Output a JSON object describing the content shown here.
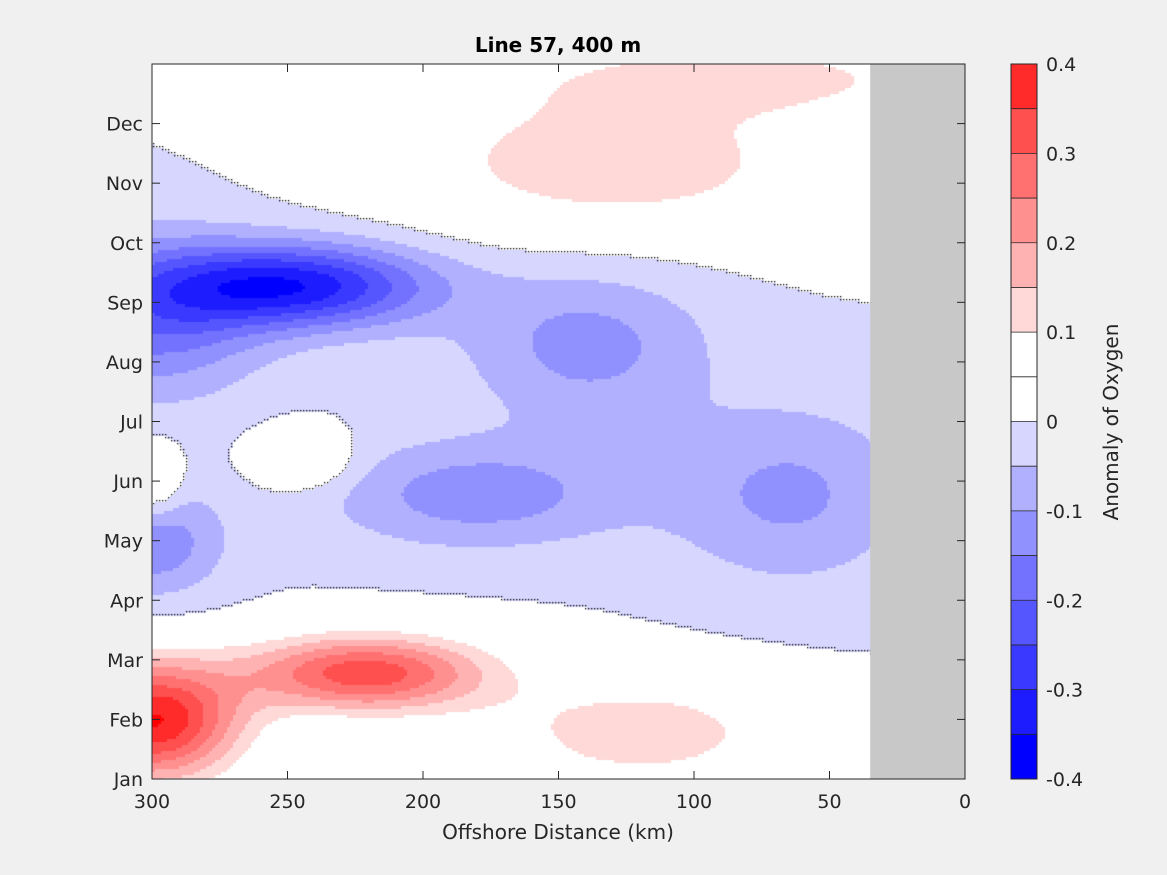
{
  "chart_data": {
    "type": "heatmap",
    "subtype": "filled-contour",
    "title": "Line 57, 400 m",
    "xlabel": "Offshore Distance (km)",
    "ylabel": "",
    "xlim": [
      300,
      0
    ],
    "x_direction": "reversed",
    "xticks": [
      300,
      250,
      200,
      150,
      100,
      50,
      0
    ],
    "xtick_labels": [
      "300",
      "250",
      "200",
      "150",
      "100",
      "50",
      "0"
    ],
    "ylim": [
      1,
      13
    ],
    "yticks": [
      1,
      2,
      3,
      4,
      5,
      6,
      7,
      8,
      9,
      10,
      11,
      12
    ],
    "ytick_labels": [
      "Jan",
      "Feb",
      "Mar",
      "Apr",
      "May",
      "Jun",
      "Jul",
      "Aug",
      "Sep",
      "Oct",
      "Nov",
      "Dec"
    ],
    "no_data_region_x": [
      35,
      0
    ],
    "no_data_color": "#c8c8c8",
    "zero_contour_color": "#000000",
    "colorbar": {
      "label": "Anomaly of Oxygen",
      "clim": [
        -0.4,
        0.4
      ],
      "tick_values": [
        0.4,
        0.3,
        0.2,
        0.1,
        0,
        -0.1,
        -0.2,
        -0.3,
        -0.4
      ],
      "tick_labels": [
        "0.4",
        "0.3",
        "0.2",
        "0.1",
        "0",
        "-0.1",
        "-0.2",
        "-0.3",
        "-0.4"
      ],
      "levels": [
        {
          "range": [
            -0.4,
            -0.35
          ],
          "color": "#0000ff"
        },
        {
          "range": [
            -0.35,
            -0.3
          ],
          "color": "#1c1cff"
        },
        {
          "range": [
            -0.3,
            -0.25
          ],
          "color": "#3939ff"
        },
        {
          "range": [
            -0.25,
            -0.2
          ],
          "color": "#5656ff"
        },
        {
          "range": [
            -0.2,
            -0.15
          ],
          "color": "#7272ff"
        },
        {
          "range": [
            -0.15,
            -0.1
          ],
          "color": "#9090ff"
        },
        {
          "range": [
            -0.1,
            -0.05
          ],
          "color": "#b0b0ff"
        },
        {
          "range": [
            -0.05,
            0
          ],
          "color": "#d6d6ff"
        },
        {
          "range": [
            0,
            0.05
          ],
          "color": "#ffffff"
        },
        {
          "range": [
            0.05,
            0.1
          ],
          "color": "#ffffff"
        },
        {
          "range": [
            0.1,
            0.15
          ],
          "color": "#ffd8d8"
        },
        {
          "range": [
            0.15,
            0.2
          ],
          "color": "#ffb2b2"
        },
        {
          "range": [
            0.2,
            0.25
          ],
          "color": "#ff9090"
        },
        {
          "range": [
            0.25,
            0.3
          ],
          "color": "#ff7070"
        },
        {
          "range": [
            0.3,
            0.35
          ],
          "color": "#ff5050"
        },
        {
          "range": [
            0.35,
            0.4
          ],
          "color": "#ff2a2a"
        },
        {
          "range": [
            0.4,
            0.45
          ],
          "color": "#ff0000"
        }
      ]
    },
    "anomaly_features": [
      {
        "name": "late-summer negative core",
        "x": 248,
        "y": 9.3,
        "value": -0.33,
        "sx": 50,
        "sy": 0.7
      },
      {
        "name": "nearshore-west negative band",
        "x": 300,
        "y": 8.8,
        "value": -0.18,
        "sx": 40,
        "sy": 1.3
      },
      {
        "name": "offshore mid negative",
        "x": 140,
        "y": 8.3,
        "value": -0.12,
        "sx": 45,
        "sy": 1.3
      },
      {
        "name": "early-summer negative",
        "x": 180,
        "y": 5.8,
        "value": -0.13,
        "sx": 55,
        "sy": 0.9
      },
      {
        "name": "inshore late-spring negative",
        "x": 65,
        "y": 5.8,
        "value": -0.11,
        "sx": 45,
        "sy": 1.5
      },
      {
        "name": "spring negative patch",
        "x": 300,
        "y": 5,
        "value": -0.14,
        "sx": 25,
        "sy": 0.9
      },
      {
        "name": "late-winter positive core",
        "x": 222,
        "y": 2.8,
        "value": 0.33,
        "sx": 45,
        "sy": 0.65
      },
      {
        "name": "winter positive west",
        "x": 300,
        "y": 2,
        "value": 0.4,
        "sx": 32,
        "sy": 1.0
      },
      {
        "name": "winter positive mid",
        "x": 120,
        "y": 1.8,
        "value": 0.13,
        "sx": 60,
        "sy": 1.0
      },
      {
        "name": "late-year positive",
        "x": 130,
        "y": 11.4,
        "value": 0.14,
        "sx": 80,
        "sy": 1.3
      },
      {
        "name": "year-end positive corner",
        "x": 80,
        "y": 12.8,
        "value": 0.11,
        "sx": 80,
        "sy": 0.6
      },
      {
        "name": "midyear positive patch",
        "x": 245,
        "y": 6.4,
        "value": 0.11,
        "sx": 18,
        "sy": 0.5
      },
      {
        "name": "nearshore summer positive",
        "x": 300,
        "y": 6,
        "value": 0.12,
        "sx": 10,
        "sy": 0.6
      }
    ]
  }
}
